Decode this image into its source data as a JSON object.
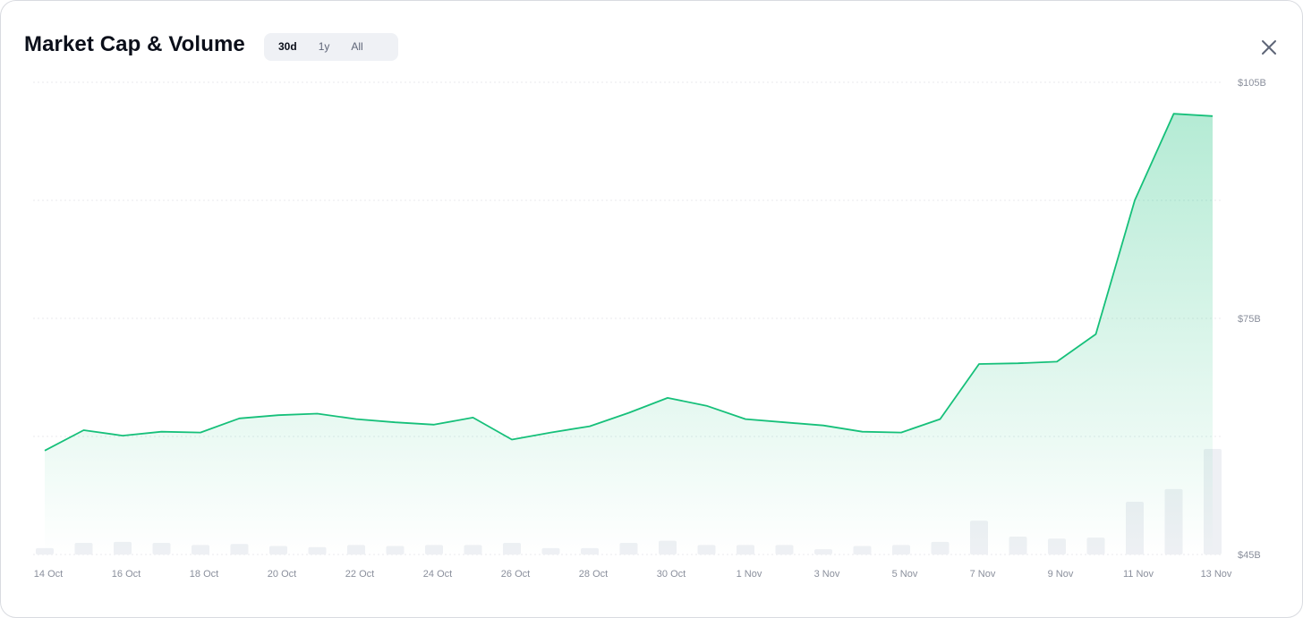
{
  "header": {
    "title": "Market Cap & Volume",
    "ranges": [
      "30d",
      "1y",
      "All"
    ],
    "selected_range": "30d"
  },
  "colors": {
    "line": "#16c07a",
    "area": "#16c07a",
    "volume_bar": "#eef0f4",
    "grid": "#e8eaee"
  },
  "icons": {
    "close": "close-icon"
  },
  "chart_data": {
    "type": "area",
    "title": "Market Cap & Volume",
    "x": [
      "14 Oct",
      "15 Oct",
      "16 Oct",
      "17 Oct",
      "18 Oct",
      "19 Oct",
      "20 Oct",
      "21 Oct",
      "22 Oct",
      "23 Oct",
      "24 Oct",
      "25 Oct",
      "26 Oct",
      "27 Oct",
      "28 Oct",
      "29 Oct",
      "30 Oct",
      "31 Oct",
      "1 Nov",
      "2 Nov",
      "3 Nov",
      "4 Nov",
      "5 Nov",
      "6 Nov",
      "7 Nov",
      "8 Nov",
      "9 Nov",
      "10 Nov",
      "11 Nov",
      "12 Nov",
      "13 Nov"
    ],
    "x_tick_labels": [
      "14 Oct",
      "16 Oct",
      "18 Oct",
      "20 Oct",
      "22 Oct",
      "24 Oct",
      "26 Oct",
      "28 Oct",
      "30 Oct",
      "1 Nov",
      "3 Nov",
      "5 Nov",
      "7 Nov",
      "9 Nov",
      "11 Nov",
      "13 Nov"
    ],
    "series": [
      {
        "values": [
          58.2,
          60.8,
          60.1,
          60.6,
          60.5,
          62.3,
          62.7,
          62.9,
          62.2,
          61.8,
          61.5,
          62.4,
          59.6,
          60.5,
          61.3,
          63.0,
          64.9,
          63.9,
          62.2,
          61.8,
          61.4,
          60.6,
          60.5,
          62.2,
          69.2,
          69.3,
          69.5,
          73.0,
          90.0,
          101.0,
          100.7
        ]
      }
    ],
    "volume_relative": [
      0.06,
      0.11,
      0.12,
      0.11,
      0.09,
      0.1,
      0.08,
      0.07,
      0.09,
      0.08,
      0.09,
      0.09,
      0.11,
      0.06,
      0.06,
      0.11,
      0.13,
      0.09,
      0.09,
      0.09,
      0.05,
      0.08,
      0.09,
      0.12,
      0.32,
      0.17,
      0.15,
      0.16,
      0.5,
      0.62,
      1.0
    ],
    "y_ticks": [
      45,
      75,
      105
    ],
    "y_tick_labels": [
      "$45B",
      "$75B",
      "$105B"
    ],
    "ylim": [
      45,
      105
    ],
    "grid": true
  }
}
